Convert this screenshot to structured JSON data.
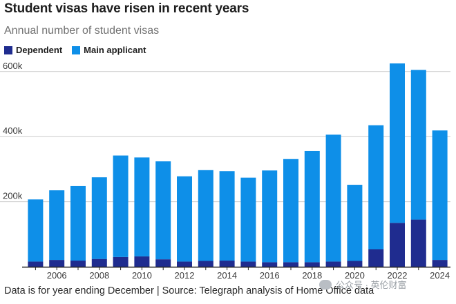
{
  "title": "Student visas have risen in recent years",
  "subtitle": "Annual number of student visas",
  "legend": {
    "dependent": "Dependent",
    "main": "Main applicant"
  },
  "colors": {
    "dependent": "#1f2c8f",
    "main": "#0e8fe8",
    "grid": "#c9c9c9",
    "axis": "#222222"
  },
  "footer": "Data is for year ending December | Source: Telegraph analysis of Home Office data",
  "watermark": "公众号 · 英伦财富",
  "chart_data": {
    "type": "bar",
    "stacked": true,
    "title": "Student visas have risen in recent years",
    "subtitle": "Annual number of student visas",
    "categories": [
      "2005",
      "2006",
      "2007",
      "2008",
      "2009",
      "2010",
      "2011",
      "2012",
      "2013",
      "2014",
      "2015",
      "2016",
      "2017",
      "2018",
      "2019",
      "2020",
      "2021",
      "2022",
      "2023",
      "2024"
    ],
    "x_tick_labels": [
      "2006",
      "2008",
      "2010",
      "2012",
      "2014",
      "2016",
      "2018",
      "2020",
      "2022",
      "2024"
    ],
    "series": [
      {
        "name": "Dependent",
        "values": [
          16,
          21,
          19,
          24,
          30,
          32,
          23,
          16,
          18,
          19,
          16,
          14,
          14,
          14,
          16,
          18,
          54,
          135,
          145,
          21
        ]
      },
      {
        "name": "Main applicant",
        "values": [
          191,
          214,
          229,
          251,
          312,
          304,
          301,
          262,
          279,
          275,
          258,
          282,
          317,
          342,
          390,
          234,
          381,
          490,
          460,
          398
        ]
      }
    ],
    "y_ticks": [
      200,
      400,
      600
    ],
    "y_tick_labels": [
      "200k",
      "400k",
      "600k"
    ],
    "ylim": [
      0,
      650
    ],
    "units": "thousands",
    "grid": true,
    "legend_position": "top-left"
  }
}
